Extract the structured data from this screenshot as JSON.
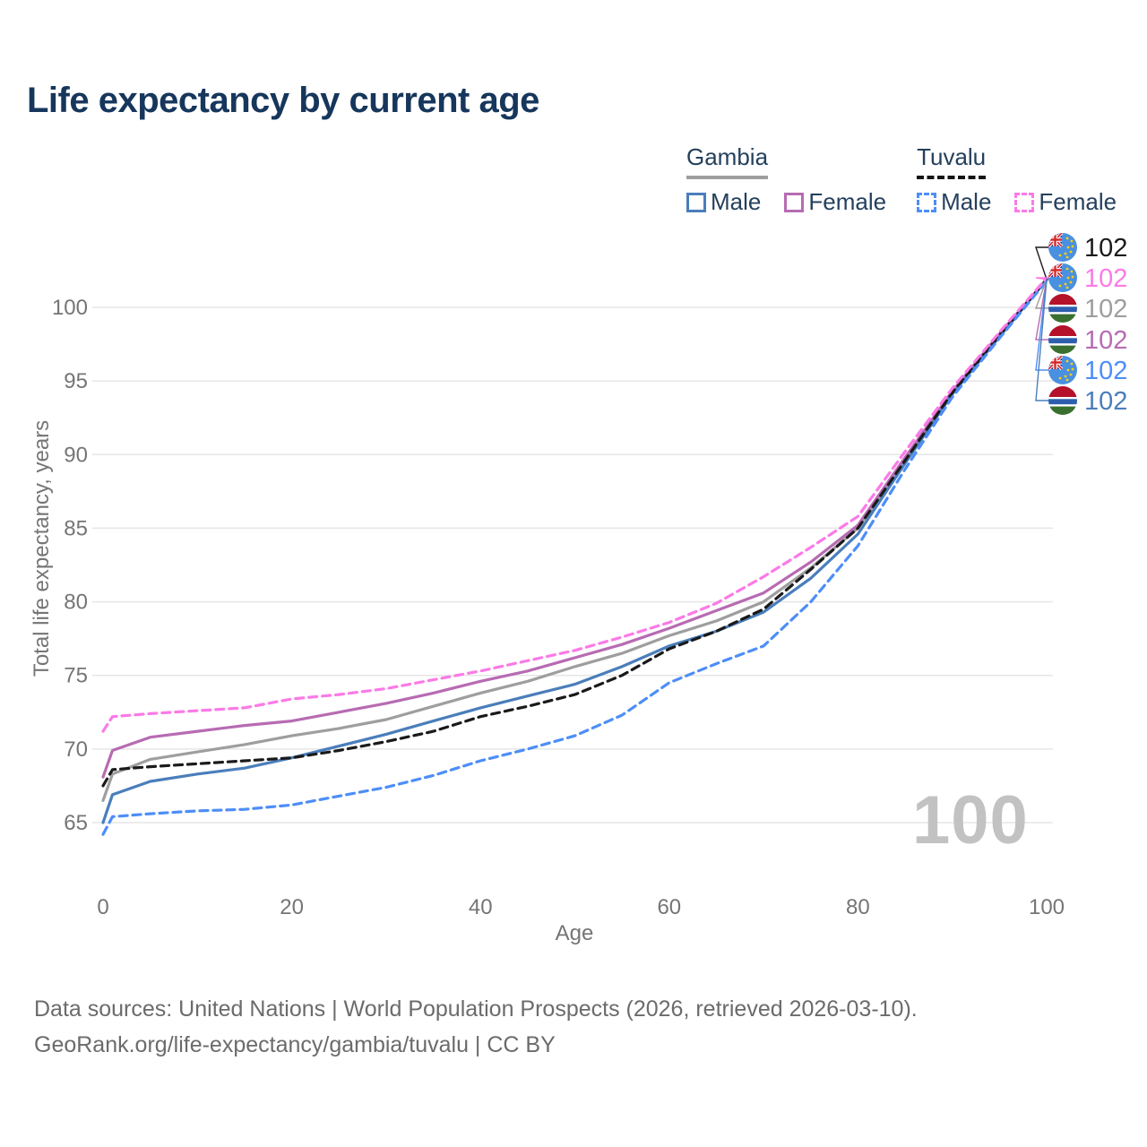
{
  "title": "Life expectancy by current age",
  "legend": {
    "groups": [
      {
        "name": "Gambia",
        "underline_style": "solid",
        "underline_color": "#9e9e9e",
        "items": [
          {
            "label": "Male",
            "color": "#4a7ebb",
            "dash": false
          },
          {
            "label": "Female",
            "color": "#b76bb2",
            "dash": false
          }
        ]
      },
      {
        "name": "Tuvalu",
        "underline_style": "dashed",
        "underline_color": "#141414",
        "items": [
          {
            "label": "Male",
            "color": "#4d8ef7",
            "dash": true
          },
          {
            "label": "Female",
            "color": "#fb7ae7",
            "dash": true
          }
        ]
      }
    ]
  },
  "chart_data": {
    "type": "line",
    "title": "Life expectancy by current age",
    "xlabel": "Age",
    "ylabel": "Total life expectancy, years",
    "xlim": [
      0,
      100
    ],
    "ylim": [
      63,
      103
    ],
    "x_ticks": [
      0,
      20,
      40,
      60,
      80,
      100
    ],
    "y_ticks": [
      65,
      70,
      75,
      80,
      85,
      90,
      95,
      100
    ],
    "grid": "horizontal",
    "legend_position": "top-right",
    "x": [
      0,
      1,
      5,
      10,
      15,
      20,
      25,
      30,
      35,
      40,
      45,
      50,
      55,
      60,
      65,
      70,
      75,
      80,
      85,
      90,
      95,
      100
    ],
    "series": [
      {
        "key": "gambia_total",
        "name": "Gambia total",
        "color": "#9e9e9e",
        "dash": false,
        "values": [
          66.5,
          68.3,
          69.3,
          69.8,
          70.3,
          70.9,
          71.4,
          72.0,
          72.9,
          73.8,
          74.6,
          75.6,
          76.5,
          77.7,
          78.7,
          80.0,
          82.3,
          85.0,
          89.6,
          94.2,
          98.1,
          101.9
        ]
      },
      {
        "key": "gambia_female",
        "name": "Gambia female",
        "color": "#b76bb2",
        "dash": false,
        "values": [
          68.1,
          69.9,
          70.8,
          71.2,
          71.6,
          71.9,
          72.5,
          73.1,
          73.8,
          74.6,
          75.3,
          76.2,
          77.1,
          78.2,
          79.4,
          80.6,
          82.7,
          85.2,
          89.8,
          94.3,
          98.2,
          101.9
        ]
      },
      {
        "key": "gambia_male",
        "name": "Gambia male",
        "color": "#4a7ebb",
        "dash": false,
        "values": [
          65.0,
          66.9,
          67.8,
          68.3,
          68.7,
          69.4,
          70.2,
          71.0,
          71.9,
          72.8,
          73.6,
          74.4,
          75.6,
          77.0,
          78.0,
          79.3,
          81.6,
          84.6,
          89.4,
          94.1,
          98.0,
          101.9
        ]
      },
      {
        "key": "tuvalu_total",
        "name": "Tuvalu total",
        "color": "#1a1a1a",
        "dash": true,
        "values": [
          67.5,
          68.6,
          68.8,
          69.0,
          69.2,
          69.4,
          69.9,
          70.5,
          71.2,
          72.2,
          72.9,
          73.7,
          75.0,
          76.8,
          78.0,
          79.5,
          82.2,
          85.0,
          89.6,
          94.2,
          98.1,
          101.9
        ]
      },
      {
        "key": "tuvalu_male",
        "name": "Tuvalu male",
        "color": "#4d8ef7",
        "dash": true,
        "values": [
          64.2,
          65.4,
          65.6,
          65.8,
          65.9,
          66.2,
          66.8,
          67.4,
          68.2,
          69.2,
          70.0,
          70.9,
          72.3,
          74.5,
          75.8,
          77.0,
          80.0,
          83.8,
          89.0,
          93.9,
          97.9,
          101.8
        ]
      },
      {
        "key": "tuvalu_female",
        "name": "Tuvalu female",
        "color": "#fb7ae7",
        "dash": true,
        "values": [
          71.2,
          72.2,
          72.4,
          72.6,
          72.8,
          73.4,
          73.7,
          74.1,
          74.7,
          75.3,
          76.0,
          76.7,
          77.6,
          78.6,
          79.9,
          81.7,
          83.7,
          85.8,
          90.2,
          94.5,
          98.3,
          102.0
        ]
      }
    ],
    "end_labels": [
      {
        "series": "tuvalu_total",
        "flag": "tuvalu",
        "value": "102",
        "color": "#1a1a1a"
      },
      {
        "series": "tuvalu_female",
        "flag": "tuvalu",
        "value": "102",
        "color": "#fb7ae7"
      },
      {
        "series": "gambia_total",
        "flag": "gambia",
        "value": "102",
        "color": "#9e9e9e"
      },
      {
        "series": "gambia_female",
        "flag": "gambia",
        "value": "102",
        "color": "#b76bb2"
      },
      {
        "series": "tuvalu_male",
        "flag": "tuvalu",
        "value": "102",
        "color": "#4d8ef7"
      },
      {
        "series": "gambia_male",
        "flag": "gambia",
        "value": "102",
        "color": "#4a7ebb"
      }
    ]
  },
  "watermark": "100",
  "footer": {
    "line1": "Data sources: United Nations | World Population Prospects (2026, retrieved 2026-03-10).",
    "line2": "GeoRank.org/life-expectancy/gambia/tuvalu | CC BY"
  },
  "colors": {
    "title": "#16365c",
    "axis_text": "#757575",
    "gridline": "#e6e6e6",
    "watermark": "#c2c2c2",
    "footer_text": "#6b6b6b"
  }
}
